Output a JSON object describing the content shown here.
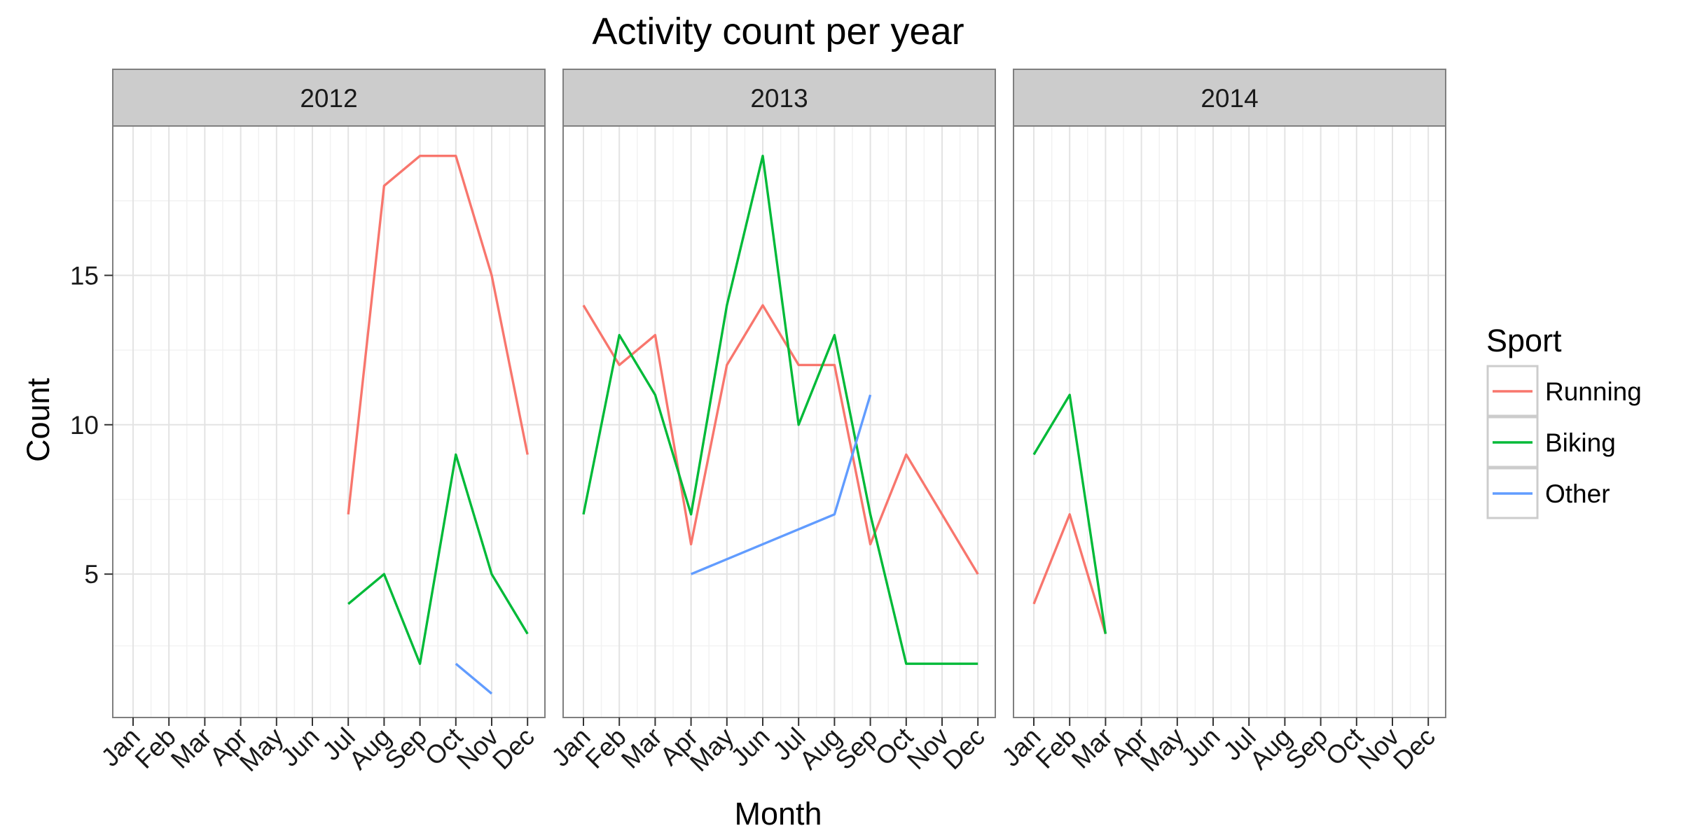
{
  "chart_data": {
    "type": "line",
    "title": "Activity count per year",
    "xlabel": "Month",
    "ylabel": "Count",
    "months": [
      "Jan",
      "Feb",
      "Mar",
      "Apr",
      "May",
      "Jun",
      "Jul",
      "Aug",
      "Sep",
      "Oct",
      "Nov",
      "Dec"
    ],
    "ylim": [
      0.2,
      20
    ],
    "yticks": [
      5,
      10,
      15
    ],
    "grid": true,
    "legend": {
      "title": "Sport",
      "placement": "right"
    },
    "panels": [
      {
        "label": "2012",
        "series": [
          {
            "name": "Running",
            "color": "#F8766D",
            "points": [
              [
                7,
                7
              ],
              [
                8,
                18
              ],
              [
                9,
                19
              ],
              [
                10,
                19
              ],
              [
                11,
                15
              ],
              [
                12,
                9
              ]
            ]
          },
          {
            "name": "Biking",
            "color": "#00BA38",
            "points": [
              [
                7,
                4
              ],
              [
                8,
                5
              ],
              [
                9,
                2
              ],
              [
                10,
                9
              ],
              [
                11,
                5
              ],
              [
                12,
                3
              ]
            ]
          },
          {
            "name": "Other",
            "color": "#619CFF",
            "points": [
              [
                10,
                2
              ],
              [
                11,
                1
              ]
            ]
          }
        ]
      },
      {
        "label": "2013",
        "series": [
          {
            "name": "Running",
            "color": "#F8766D",
            "points": [
              [
                1,
                14
              ],
              [
                2,
                12
              ],
              [
                3,
                13
              ],
              [
                4,
                6
              ],
              [
                5,
                12
              ],
              [
                6,
                14
              ],
              [
                7,
                12
              ],
              [
                8,
                12
              ],
              [
                9,
                6
              ],
              [
                10,
                9
              ],
              [
                11,
                7
              ],
              [
                12,
                5
              ]
            ]
          },
          {
            "name": "Biking",
            "color": "#00BA38",
            "points": [
              [
                1,
                7
              ],
              [
                2,
                13
              ],
              [
                3,
                11
              ],
              [
                4,
                7
              ],
              [
                5,
                14
              ],
              [
                6,
                19
              ],
              [
                7,
                10
              ],
              [
                8,
                13
              ],
              [
                9,
                7
              ],
              [
                10,
                2
              ],
              [
                11,
                2
              ],
              [
                12,
                2
              ]
            ]
          },
          {
            "name": "Other",
            "color": "#619CFF",
            "points": [
              [
                4,
                5
              ],
              [
                8,
                7
              ],
              [
                9,
                11
              ]
            ]
          }
        ]
      },
      {
        "label": "2014",
        "series": [
          {
            "name": "Running",
            "color": "#F8766D",
            "points": [
              [
                1,
                4
              ],
              [
                2,
                7
              ],
              [
                3,
                3
              ]
            ]
          },
          {
            "name": "Biking",
            "color": "#00BA38",
            "points": [
              [
                1,
                9
              ],
              [
                2,
                11
              ],
              [
                3,
                3
              ]
            ]
          }
        ]
      }
    ]
  }
}
